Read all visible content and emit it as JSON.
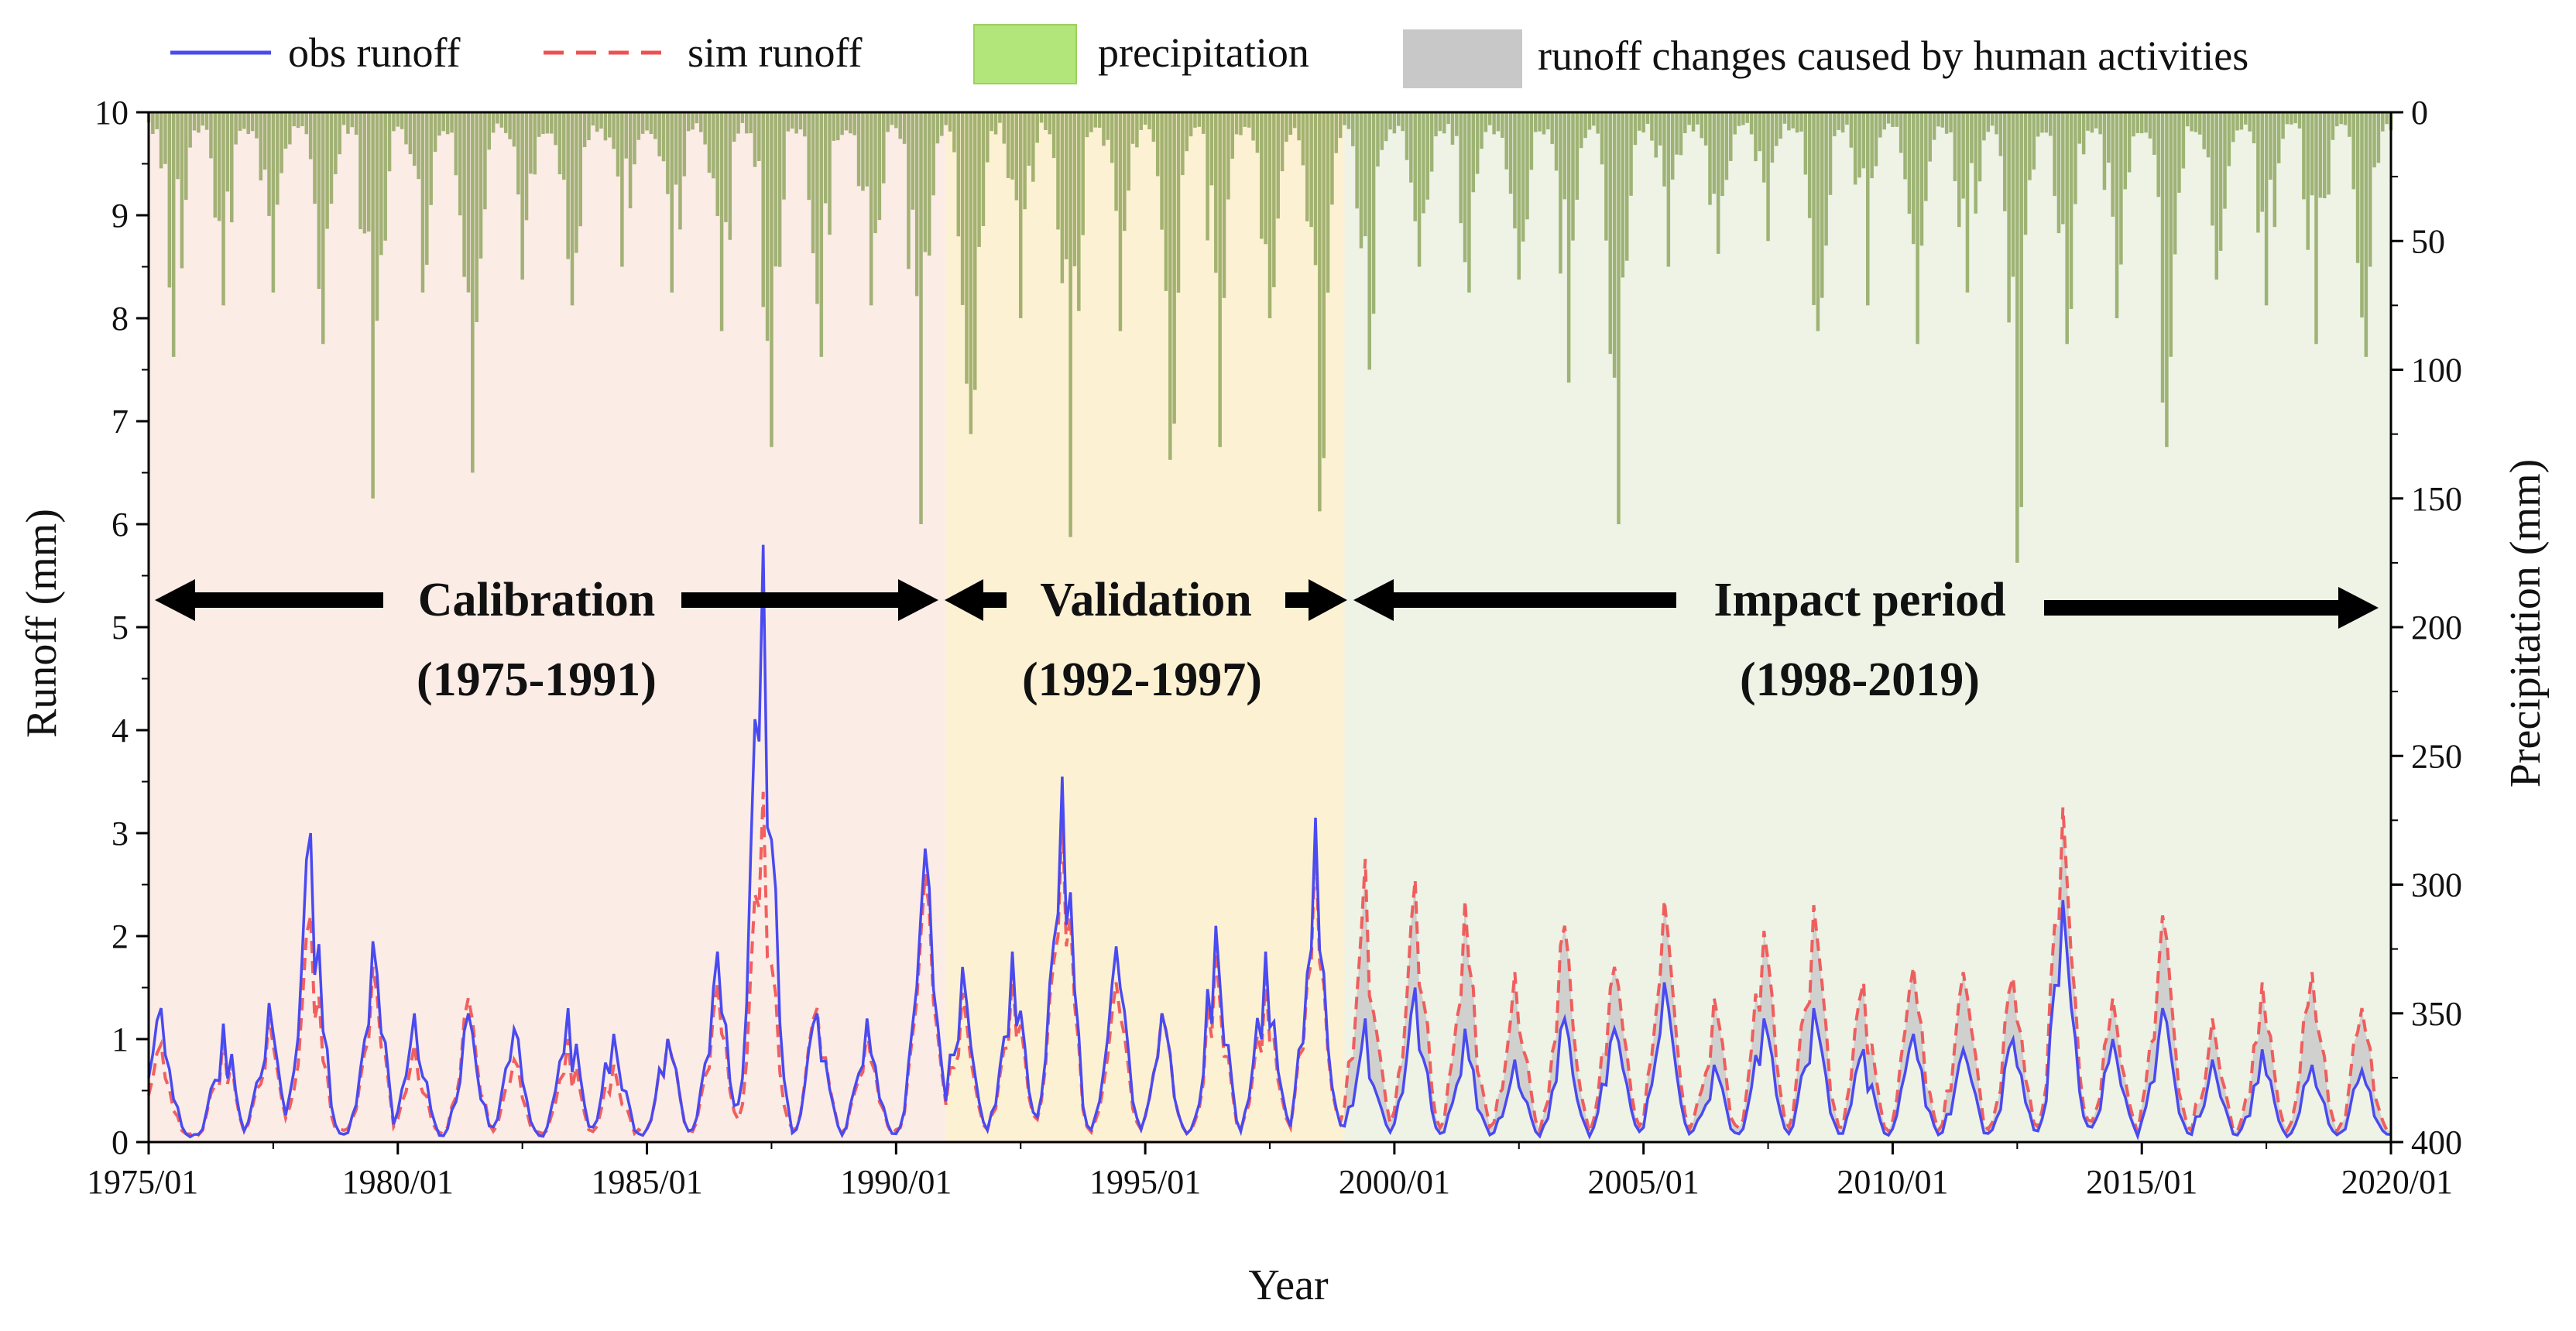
{
  "chart_data": {
    "type": "line",
    "xlabel": "Year",
    "ylabel": "Runoff (mm)",
    "y2label": "Precipitation (mm)",
    "xlim": [
      "1975-01",
      "2020-01"
    ],
    "ylim": [
      0,
      10
    ],
    "y2lim": [
      0,
      400
    ],
    "y2_inverted": true,
    "grid": false,
    "legend_position": "top",
    "x_ticks": [
      "1975/01",
      "1980/01",
      "1985/01",
      "1990/01",
      "1995/01",
      "2000/01",
      "2005/01",
      "2010/01",
      "2015/01",
      "2020/01"
    ],
    "y_ticks": [
      "0",
      "1",
      "2",
      "3",
      "4",
      "5",
      "6",
      "7",
      "8",
      "9",
      "10"
    ],
    "y2_ticks": [
      "0",
      "50",
      "100",
      "150",
      "200",
      "250",
      "300",
      "350",
      "400"
    ],
    "legend": [
      {
        "label": "obs runoff",
        "style": "line",
        "color": "#4a4af0"
      },
      {
        "label": "sim runoff",
        "style": "dashed",
        "color": "#f05050"
      },
      {
        "label": "precipitation",
        "style": "box",
        "color": "#b2e57a"
      },
      {
        "label": "runoff changes caused by human activities",
        "style": "box",
        "color": "#c8c8c8"
      }
    ],
    "periods": [
      {
        "name": "Calibration",
        "range_label": "(1975-1991)",
        "start": "1975-01",
        "end": "1991-01",
        "color": "#fbece6"
      },
      {
        "name": "Validation",
        "range_label": "(1992-1997)",
        "start": "1991-01",
        "end": "1999-01",
        "color": "#fdf1d4"
      },
      {
        "name": "Impact period",
        "range_label": "(1998-2019)",
        "start": "1999-01",
        "end": "2020-01",
        "color": "#eef3e6"
      }
    ],
    "series": [
      {
        "name": "obs runoff",
        "color": "#4a4af0",
        "peaks": [
          {
            "date": "1975-04",
            "value": 1.3
          },
          {
            "date": "1976-07",
            "value": 1.15
          },
          {
            "date": "1977-06",
            "value": 1.35
          },
          {
            "date": "1978-04",
            "value": 3.0
          },
          {
            "date": "1979-07",
            "value": 1.95
          },
          {
            "date": "1980-05",
            "value": 1.25
          },
          {
            "date": "1981-06",
            "value": 1.25
          },
          {
            "date": "1982-05",
            "value": 1.1
          },
          {
            "date": "1983-06",
            "value": 1.3
          },
          {
            "date": "1984-05",
            "value": 1.05
          },
          {
            "date": "1985-06",
            "value": 1.0
          },
          {
            "date": "1986-06",
            "value": 1.85
          },
          {
            "date": "1987-05",
            "value": 5.8
          },
          {
            "date": "1988-06",
            "value": 1.25
          },
          {
            "date": "1989-06",
            "value": 1.2
          },
          {
            "date": "1990-08",
            "value": 2.85
          },
          {
            "date": "1991-05",
            "value": 1.7
          },
          {
            "date": "1992-05",
            "value": 1.85
          },
          {
            "date": "1993-05",
            "value": 3.55
          },
          {
            "date": "1994-06",
            "value": 1.9
          },
          {
            "date": "1995-05",
            "value": 1.25
          },
          {
            "date": "1996-06",
            "value": 2.1
          },
          {
            "date": "1997-06",
            "value": 1.85
          },
          {
            "date": "1998-06",
            "value": 3.15
          },
          {
            "date": "1999-06",
            "value": 1.2
          },
          {
            "date": "2000-06",
            "value": 1.5
          },
          {
            "date": "2001-06",
            "value": 1.1
          },
          {
            "date": "2002-06",
            "value": 0.8
          },
          {
            "date": "2003-06",
            "value": 1.2
          },
          {
            "date": "2004-06",
            "value": 1.1
          },
          {
            "date": "2005-06",
            "value": 1.55
          },
          {
            "date": "2006-06",
            "value": 0.75
          },
          {
            "date": "2007-06",
            "value": 1.2
          },
          {
            "date": "2008-06",
            "value": 1.3
          },
          {
            "date": "2009-06",
            "value": 0.9
          },
          {
            "date": "2010-06",
            "value": 1.05
          },
          {
            "date": "2011-06",
            "value": 0.9
          },
          {
            "date": "2012-06",
            "value": 1.0
          },
          {
            "date": "2013-06",
            "value": 2.35
          },
          {
            "date": "2014-06",
            "value": 1.0
          },
          {
            "date": "2015-06",
            "value": 1.3
          },
          {
            "date": "2016-06",
            "value": 0.8
          },
          {
            "date": "2017-06",
            "value": 0.9
          },
          {
            "date": "2018-06",
            "value": 0.75
          },
          {
            "date": "2019-06",
            "value": 0.7
          }
        ]
      },
      {
        "name": "sim runoff",
        "color": "#f05050",
        "peaks": [
          {
            "date": "1975-04",
            "value": 0.95
          },
          {
            "date": "1976-07",
            "value": 1.05
          },
          {
            "date": "1977-06",
            "value": 1.2
          },
          {
            "date": "1978-04",
            "value": 2.2
          },
          {
            "date": "1979-07",
            "value": 1.7
          },
          {
            "date": "1980-05",
            "value": 0.95
          },
          {
            "date": "1981-06",
            "value": 1.4
          },
          {
            "date": "1982-05",
            "value": 0.8
          },
          {
            "date": "1983-06",
            "value": 1.0
          },
          {
            "date": "1984-05",
            "value": 0.75
          },
          {
            "date": "1985-06",
            "value": 1.0
          },
          {
            "date": "1986-06",
            "value": 1.55
          },
          {
            "date": "1987-05",
            "value": 3.4
          },
          {
            "date": "1988-06",
            "value": 1.3
          },
          {
            "date": "1989-06",
            "value": 1.1
          },
          {
            "date": "1990-08",
            "value": 2.6
          },
          {
            "date": "1991-05",
            "value": 1.45
          },
          {
            "date": "1992-05",
            "value": 1.65
          },
          {
            "date": "1993-05",
            "value": 3.2
          },
          {
            "date": "1994-06",
            "value": 1.55
          },
          {
            "date": "1995-05",
            "value": 1.25
          },
          {
            "date": "1996-06",
            "value": 1.85
          },
          {
            "date": "1997-06",
            "value": 1.6
          },
          {
            "date": "1998-06",
            "value": 2.95
          },
          {
            "date": "1999-06",
            "value": 2.75
          },
          {
            "date": "2000-06",
            "value": 2.55
          },
          {
            "date": "2001-06",
            "value": 2.35
          },
          {
            "date": "2002-06",
            "value": 1.65
          },
          {
            "date": "2003-06",
            "value": 2.1
          },
          {
            "date": "2004-06",
            "value": 1.7
          },
          {
            "date": "2005-06",
            "value": 2.35
          },
          {
            "date": "2006-06",
            "value": 1.4
          },
          {
            "date": "2007-06",
            "value": 2.05
          },
          {
            "date": "2008-06",
            "value": 2.3
          },
          {
            "date": "2009-06",
            "value": 1.55
          },
          {
            "date": "2010-06",
            "value": 1.7
          },
          {
            "date": "2011-06",
            "value": 1.65
          },
          {
            "date": "2012-06",
            "value": 1.6
          },
          {
            "date": "2013-06",
            "value": 3.25
          },
          {
            "date": "2014-06",
            "value": 1.4
          },
          {
            "date": "2015-06",
            "value": 2.2
          },
          {
            "date": "2016-06",
            "value": 1.2
          },
          {
            "date": "2017-06",
            "value": 1.55
          },
          {
            "date": "2018-06",
            "value": 1.65
          },
          {
            "date": "2019-06",
            "value": 1.3
          }
        ]
      },
      {
        "name": "precipitation",
        "color": "#b2e57a",
        "peaks": [
          {
            "date": "1975-07",
            "value": 95
          },
          {
            "date": "1976-07",
            "value": 75
          },
          {
            "date": "1977-07",
            "value": 70
          },
          {
            "date": "1978-07",
            "value": 90
          },
          {
            "date": "1979-07",
            "value": 150
          },
          {
            "date": "1980-07",
            "value": 70
          },
          {
            "date": "1981-07",
            "value": 140
          },
          {
            "date": "1982-07",
            "value": 65
          },
          {
            "date": "1983-07",
            "value": 75
          },
          {
            "date": "1984-07",
            "value": 60
          },
          {
            "date": "1985-07",
            "value": 70
          },
          {
            "date": "1986-07",
            "value": 85
          },
          {
            "date": "1987-07",
            "value": 130
          },
          {
            "date": "1988-07",
            "value": 95
          },
          {
            "date": "1989-07",
            "value": 75
          },
          {
            "date": "1990-07",
            "value": 160
          },
          {
            "date": "1991-07",
            "value": 125
          },
          {
            "date": "1992-07",
            "value": 80
          },
          {
            "date": "1993-07",
            "value": 165
          },
          {
            "date": "1994-07",
            "value": 85
          },
          {
            "date": "1995-07",
            "value": 135
          },
          {
            "date": "1996-07",
            "value": 130
          },
          {
            "date": "1997-07",
            "value": 80
          },
          {
            "date": "1998-07",
            "value": 155
          },
          {
            "date": "1999-07",
            "value": 100
          },
          {
            "date": "2000-07",
            "value": 60
          },
          {
            "date": "2001-07",
            "value": 70
          },
          {
            "date": "2002-07",
            "value": 65
          },
          {
            "date": "2003-07",
            "value": 105
          },
          {
            "date": "2004-07",
            "value": 160
          },
          {
            "date": "2005-07",
            "value": 60
          },
          {
            "date": "2006-07",
            "value": 55
          },
          {
            "date": "2007-07",
            "value": 50
          },
          {
            "date": "2008-07",
            "value": 85
          },
          {
            "date": "2009-07",
            "value": 75
          },
          {
            "date": "2010-07",
            "value": 90
          },
          {
            "date": "2011-07",
            "value": 70
          },
          {
            "date": "2012-07",
            "value": 175
          },
          {
            "date": "2013-07",
            "value": 90
          },
          {
            "date": "2014-07",
            "value": 80
          },
          {
            "date": "2015-07",
            "value": 130
          },
          {
            "date": "2016-07",
            "value": 65
          },
          {
            "date": "2017-07",
            "value": 75
          },
          {
            "date": "2018-07",
            "value": 90
          },
          {
            "date": "2019-07",
            "value": 95
          }
        ]
      }
    ]
  }
}
